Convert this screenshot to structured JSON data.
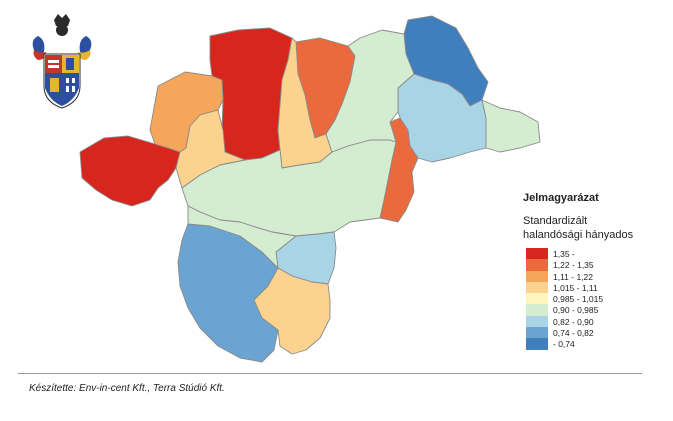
{
  "map": {
    "colors": {
      "class_1": "#d7261e",
      "class_2": "#ea6a3d",
      "class_3": "#f6a65a",
      "class_4": "#fbd38f",
      "class_5": "#fef6bd",
      "class_6": "#d4ecd0",
      "class_7": "#a8d4e6",
      "class_8": "#6aa4d2",
      "class_9": "#3f7fbe"
    },
    "regions": [
      {
        "name": "north-central",
        "class": "class_1"
      },
      {
        "name": "west",
        "class": "class_1"
      },
      {
        "name": "north-west",
        "class": "class_3"
      },
      {
        "name": "north-center-east",
        "class": "class_2"
      },
      {
        "name": "north-narrow",
        "class": "class_4"
      },
      {
        "name": "west-center",
        "class": "class_4"
      },
      {
        "name": "north-east-corner",
        "class": "class_9"
      },
      {
        "name": "north-east-inner",
        "class": "class_7"
      },
      {
        "name": "east",
        "class": "class_6"
      },
      {
        "name": "center-east-strip",
        "class": "class_2"
      },
      {
        "name": "central",
        "class": "class_6"
      },
      {
        "name": "north-east-middle",
        "class": "class_6"
      },
      {
        "name": "south-west",
        "class": "class_8"
      },
      {
        "name": "south-small",
        "class": "class_7"
      },
      {
        "name": "south",
        "class": "class_4"
      },
      {
        "name": "center-west",
        "class": "class_6"
      }
    ]
  },
  "legend": {
    "title": "Jelmagyarázat",
    "subtitle_line1": "Standardizált",
    "subtitle_line2": "halandósági hányados",
    "items": [
      {
        "label": "1,35 -",
        "color": "#d7261e"
      },
      {
        "label": "1,22 - 1,35",
        "color": "#ea6a3d"
      },
      {
        "label": "1,11 - 1,22",
        "color": "#f6a65a"
      },
      {
        "label": "1,015 - 1,11",
        "color": "#fbd38f"
      },
      {
        "label": "0,985 - 1,015",
        "color": "#fef6bd"
      },
      {
        "label": "0,90 - 0,985",
        "color": "#d4ecd0"
      },
      {
        "label": "0,82 - 0,90",
        "color": "#a8d4e6"
      },
      {
        "label": "0,74 - 0,82",
        "color": "#6aa4d2"
      },
      {
        "label": "- 0,74",
        "color": "#3f7fbe"
      }
    ]
  },
  "footer": {
    "credit": "Készítette: Env-in-cent Kft., Terra Stúdió Kft."
  },
  "emblem": {
    "name": "county-coat-of-arms"
  }
}
